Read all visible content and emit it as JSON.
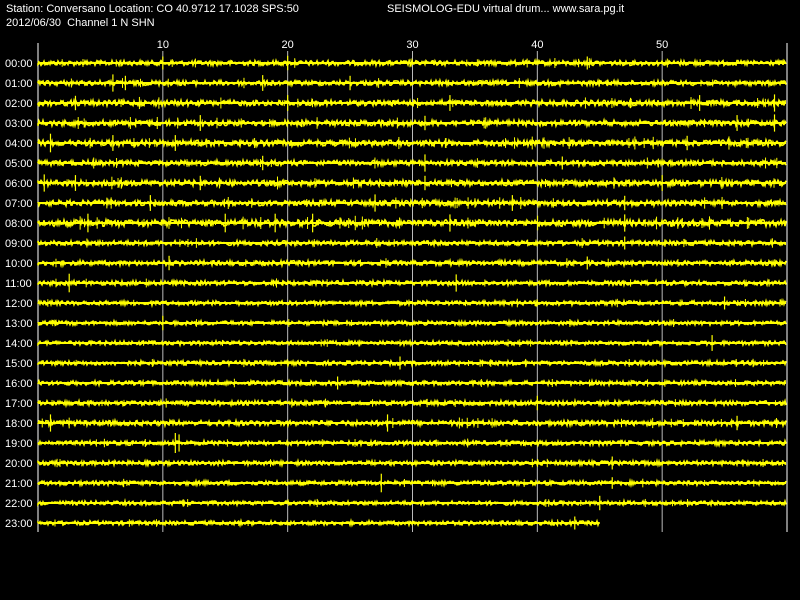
{
  "header": {
    "station_line": "Station: Conversano Location: CO 40.9712 17.1028 SPS:50",
    "date_channel_line": "2012/06/30  Channel 1 N SHN",
    "app_line": "SEISMOLOG-EDU virtual drum... www.sara.pg.it"
  },
  "colors": {
    "background": "#000000",
    "trace": "#ffff00",
    "grid": "#ffffff",
    "text": "#ffffff"
  },
  "chart_data": {
    "type": "line",
    "description_type": "seismic helicorder drum",
    "x_axis": {
      "ticks": [
        10,
        20,
        30,
        40,
        50
      ],
      "range": [
        0,
        60
      ],
      "unit_label": ""
    },
    "rows": [
      {
        "label": "00:00",
        "activity": 0.55,
        "spikes": [
          [
            10,
            0.5
          ],
          [
            20,
            0.6
          ],
          [
            44,
            0.5
          ]
        ]
      },
      {
        "label": "01:00",
        "activity": 0.55,
        "spikes": [
          [
            6,
            0.8
          ],
          [
            7,
            0.6
          ],
          [
            18,
            0.7
          ],
          [
            25,
            0.6
          ]
        ]
      },
      {
        "label": "02:00",
        "activity": 0.7,
        "spikes": [
          [
            3,
            0.6
          ],
          [
            20,
            0.7
          ],
          [
            33,
            0.7
          ],
          [
            53,
            0.7
          ],
          [
            59,
            0.8
          ]
        ]
      },
      {
        "label": "03:00",
        "activity": 0.7,
        "spikes": [
          [
            13,
            0.7
          ],
          [
            31,
            0.6
          ],
          [
            56,
            0.7
          ],
          [
            59,
            0.8
          ]
        ]
      },
      {
        "label": "04:00",
        "activity": 0.8,
        "spikes": [
          [
            1,
            0.9
          ],
          [
            6,
            0.7
          ],
          [
            11,
            0.7
          ],
          [
            52,
            0.6
          ]
        ]
      },
      {
        "label": "05:00",
        "activity": 0.6,
        "spikes": [
          [
            18,
            0.6
          ],
          [
            31,
            0.8
          ],
          [
            42,
            0.5
          ]
        ]
      },
      {
        "label": "06:00",
        "activity": 0.75,
        "spikes": [
          [
            0.5,
            0.8
          ],
          [
            3,
            0.7
          ],
          [
            13,
            0.6
          ],
          [
            31,
            0.6
          ],
          [
            50,
            0.7
          ]
        ]
      },
      {
        "label": "07:00",
        "activity": 0.7,
        "spikes": [
          [
            9,
            0.7
          ],
          [
            27,
            0.8
          ],
          [
            38,
            0.7
          ],
          [
            47,
            0.6
          ]
        ]
      },
      {
        "label": "08:00",
        "activity": 0.95,
        "spikes": [
          [
            4,
            0.9
          ],
          [
            15,
            0.9
          ],
          [
            19,
            0.9
          ],
          [
            22,
            0.9
          ],
          [
            33,
            0.8
          ],
          [
            47,
            0.8
          ]
        ]
      },
      {
        "label": "09:00",
        "activity": 0.5,
        "spikes": [
          [
            47,
            0.5
          ]
        ]
      },
      {
        "label": "10:00",
        "activity": 0.5,
        "spikes": [
          [
            10.5,
            0.6
          ],
          [
            44,
            0.5
          ]
        ]
      },
      {
        "label": "11:00",
        "activity": 0.45,
        "spikes": [
          [
            2.5,
            0.9
          ],
          [
            33.5,
            0.8
          ]
        ]
      },
      {
        "label": "12:00",
        "activity": 0.4,
        "spikes": [
          [
            55,
            0.5
          ]
        ]
      },
      {
        "label": "13:00",
        "activity": 0.35,
        "spikes": [
          [
            10,
            0.6
          ]
        ]
      },
      {
        "label": "14:00",
        "activity": 0.35,
        "spikes": [
          [
            54,
            0.7
          ]
        ]
      },
      {
        "label": "15:00",
        "activity": 0.4,
        "spikes": [
          [
            29,
            0.5
          ]
        ]
      },
      {
        "label": "16:00",
        "activity": 0.4,
        "spikes": [
          [
            24,
            0.5
          ]
        ]
      },
      {
        "label": "17:00",
        "activity": 0.45,
        "spikes": [
          [
            40,
            0.6
          ]
        ]
      },
      {
        "label": "18:00",
        "activity": 0.6,
        "spikes": [
          [
            1,
            0.8
          ],
          [
            28,
            0.8
          ],
          [
            56,
            0.6
          ]
        ]
      },
      {
        "label": "19:00",
        "activity": 0.45,
        "spikes": [
          [
            11,
            1.0
          ],
          [
            11.3,
            0.8
          ]
        ]
      },
      {
        "label": "20:00",
        "activity": 0.4,
        "spikes": [
          [
            46,
            0.5
          ]
        ]
      },
      {
        "label": "21:00",
        "activity": 0.4,
        "spikes": [
          [
            27.5,
            0.9
          ],
          [
            46,
            0.4
          ]
        ]
      },
      {
        "label": "22:00",
        "activity": 0.35,
        "spikes": [
          [
            45,
            0.6
          ]
        ]
      },
      {
        "label": "23:00",
        "activity": 0.35,
        "end": 45,
        "spikes": [
          [
            43,
            0.5
          ]
        ]
      }
    ]
  }
}
